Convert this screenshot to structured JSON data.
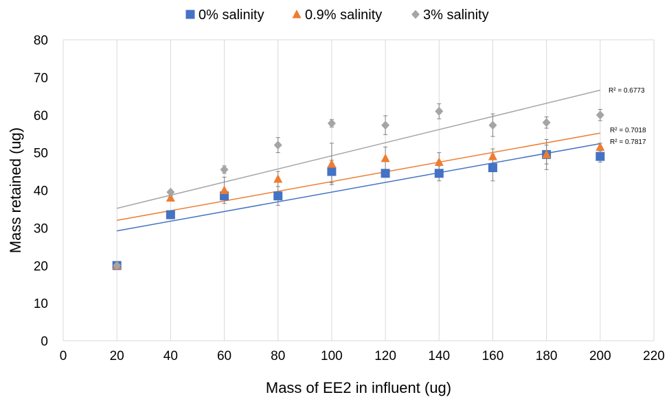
{
  "chart_data": {
    "type": "scatter",
    "xlabel": "Mass of EE2 in influent (ug)",
    "ylabel": "Mass retained (ug)",
    "xlim": [
      0,
      220
    ],
    "ylim": [
      0,
      80
    ],
    "x_ticks": [
      0,
      20,
      40,
      60,
      80,
      100,
      120,
      140,
      160,
      180,
      200,
      220
    ],
    "y_ticks": [
      0,
      10,
      20,
      30,
      40,
      50,
      60,
      70,
      80
    ],
    "grid": "vertical",
    "legend_position": "top-center",
    "series": [
      {
        "name": "0% salinity",
        "marker": "square",
        "color": "#4472C4",
        "x": [
          20,
          40,
          60,
          80,
          100,
          120,
          140,
          160,
          180,
          200
        ],
        "y": [
          20,
          33.5,
          38.5,
          38.5,
          45,
          44.5,
          44.5,
          46,
          49.5,
          49
        ],
        "error": [
          0,
          0.5,
          1,
          2.5,
          3,
          1,
          2,
          3.5,
          2.5,
          1.5
        ],
        "trendline": {
          "x": [
            20,
            200
          ],
          "y": [
            29.2,
            52.4
          ],
          "r2_label": "R² = 0.7817"
        }
      },
      {
        "name": "0.9% salinity",
        "marker": "triangle",
        "color": "#ED7D31",
        "x": [
          20,
          40,
          60,
          80,
          100,
          120,
          140,
          160,
          180,
          200
        ],
        "y": [
          20,
          38,
          40,
          43,
          47,
          48.5,
          47.5,
          49,
          49.5,
          51.5
        ],
        "error": [
          0,
          0.5,
          3.5,
          2,
          5.5,
          3,
          2.5,
          2,
          4,
          1
        ],
        "trendline": {
          "x": [
            20,
            200
          ],
          "y": [
            32,
            55.2
          ],
          "r2_label": "R² = 0.7018"
        }
      },
      {
        "name": "3% salinity",
        "marker": "diamond",
        "color": "#A5A5A5",
        "x": [
          20,
          40,
          60,
          80,
          100,
          120,
          140,
          160,
          180,
          200
        ],
        "y": [
          20,
          39.5,
          45.5,
          52,
          57.8,
          57.3,
          61,
          57.3,
          58,
          60
        ],
        "error": [
          0,
          0.5,
          1,
          2,
          1,
          2.5,
          2,
          3,
          1.5,
          1.5
        ],
        "trendline": {
          "x": [
            20,
            200
          ],
          "y": [
            35.2,
            66.6
          ],
          "r2_label": "R² = 0.6773"
        }
      }
    ]
  }
}
